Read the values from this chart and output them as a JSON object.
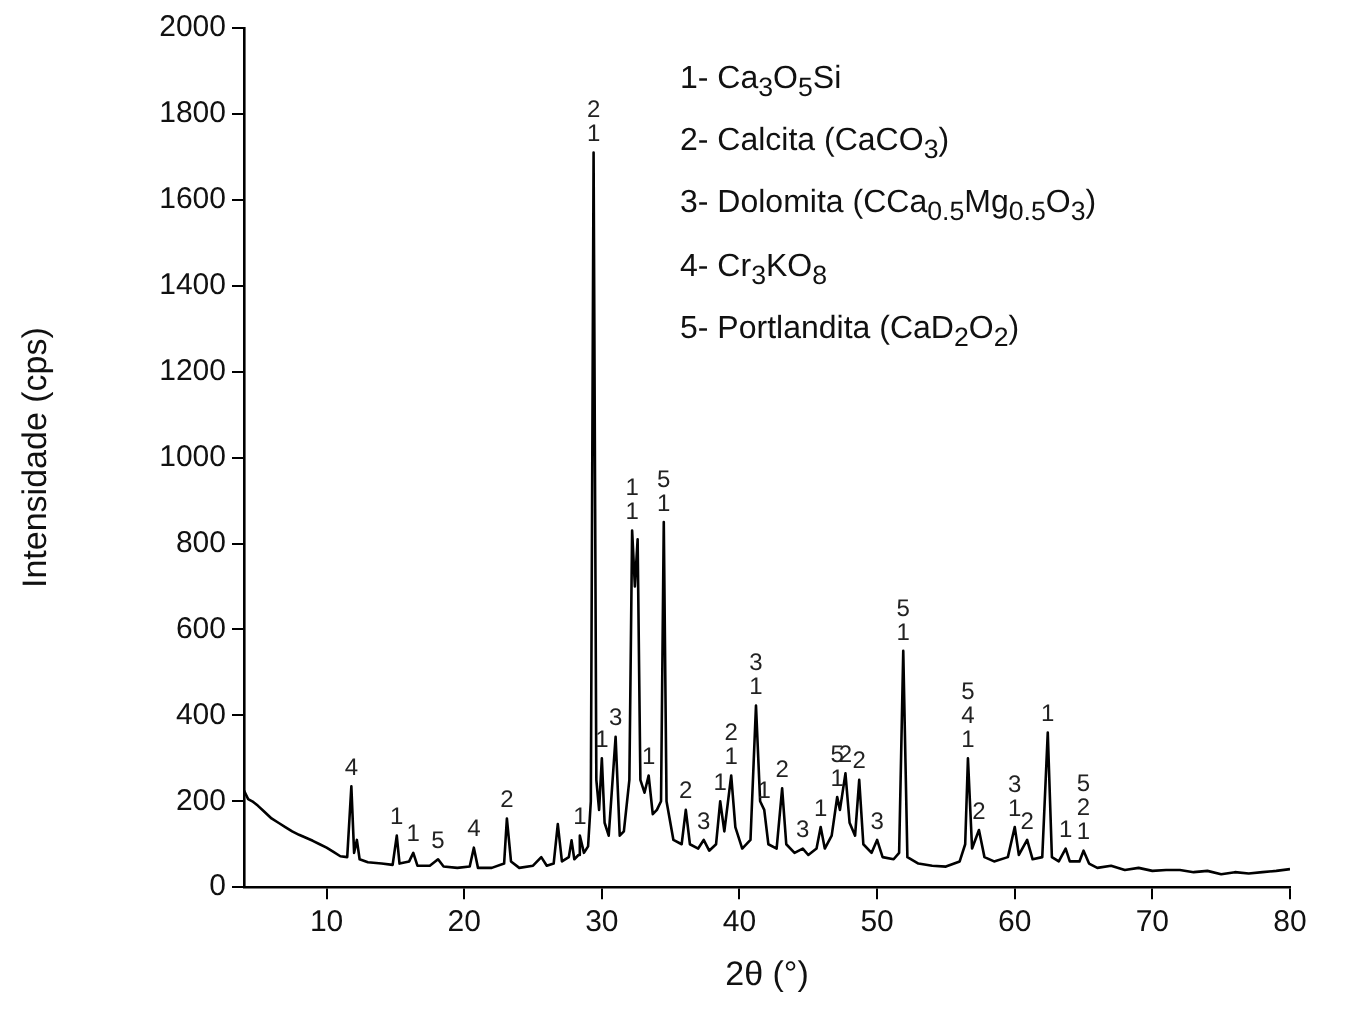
{
  "chart_data": {
    "type": "line",
    "xlabel": "2θ (°)",
    "ylabel": "Intensidade (cps)",
    "x": [
      4.0,
      4.3,
      4.6,
      5.0,
      5.5,
      6.0,
      6.5,
      7.0,
      7.5,
      8.0,
      8.5,
      9.0,
      9.5,
      10.0,
      10.5,
      11.0,
      11.5,
      11.8,
      12.0,
      12.2,
      12.4,
      13.0,
      14.0,
      14.8,
      15.1,
      15.3,
      16.0,
      16.3,
      16.6,
      17.5,
      18.1,
      18.5,
      19.5,
      20.4,
      20.7,
      21.0,
      22.0,
      22.9,
      23.1,
      23.4,
      24.0,
      25.0,
      25.6,
      26.0,
      26.5,
      26.8,
      27.1,
      27.6,
      27.8,
      28.0,
      28.3,
      28.4,
      28.7,
      29.0,
      29.2,
      29.4,
      29.6,
      29.8,
      30.0,
      30.2,
      30.5,
      31.0,
      31.3,
      31.6,
      32.0,
      32.2,
      32.4,
      32.6,
      32.8,
      33.1,
      33.4,
      33.7,
      34.0,
      34.3,
      34.5,
      34.7,
      35.2,
      35.8,
      36.1,
      36.4,
      37.0,
      37.4,
      37.8,
      38.3,
      38.6,
      38.9,
      39.4,
      39.7,
      40.2,
      40.8,
      41.2,
      41.5,
      41.8,
      42.1,
      42.7,
      43.1,
      43.4,
      44.0,
      44.6,
      45.0,
      45.6,
      45.9,
      46.2,
      46.7,
      47.1,
      47.3,
      47.7,
      48.0,
      48.4,
      48.7,
      49.0,
      49.6,
      50.0,
      50.4,
      51.2,
      51.6,
      51.9,
      52.2,
      53.0,
      54.0,
      55.0,
      56.0,
      56.4,
      56.6,
      56.9,
      57.4,
      57.8,
      58.5,
      59.5,
      60.0,
      60.3,
      60.9,
      61.3,
      62.0,
      62.4,
      62.7,
      63.2,
      63.7,
      64.0,
      64.7,
      65.0,
      65.4,
      66.0,
      67.0,
      68.0,
      69.0,
      70.0,
      71.0,
      72.0,
      73.0,
      74.0,
      75.0,
      76.0,
      77.0,
      78.0,
      79.0,
      80.0
    ],
    "series": [
      {
        "color": "#000000",
        "values": [
          225,
          205,
          200,
          190,
          175,
          160,
          150,
          140,
          130,
          122,
          115,
          108,
          100,
          92,
          82,
          72,
          70,
          235,
          80,
          110,
          65,
          58,
          55,
          52,
          120,
          55,
          60,
          80,
          50,
          50,
          65,
          48,
          45,
          48,
          92,
          45,
          45,
          55,
          160,
          60,
          45,
          50,
          70,
          50,
          55,
          147,
          60,
          70,
          109,
          65,
          75,
          120,
          80,
          95,
          200,
          1710,
          250,
          180,
          300,
          150,
          120,
          350,
          120,
          130,
          250,
          830,
          700,
          810,
          250,
          220,
          260,
          170,
          180,
          200,
          850,
          200,
          110,
          100,
          180,
          100,
          90,
          110,
          85,
          100,
          200,
          130,
          260,
          140,
          90,
          110,
          423,
          200,
          180,
          100,
          90,
          230,
          100,
          80,
          90,
          75,
          90,
          140,
          90,
          120,
          210,
          180,
          265,
          150,
          120,
          250,
          100,
          80,
          110,
          70,
          65,
          80,
          550,
          70,
          55,
          50,
          48,
          60,
          100,
          300,
          90,
          133,
          70,
          60,
          70,
          140,
          75,
          110,
          65,
          70,
          360,
          70,
          60,
          90,
          60,
          60,
          85,
          55,
          45,
          50,
          40,
          45,
          38,
          40,
          40,
          35,
          38,
          30,
          35,
          32,
          35,
          38,
          42
        ]
      }
    ],
    "xlim": [
      4,
      80
    ],
    "xticks": [
      10,
      20,
      30,
      40,
      50,
      60,
      70,
      80
    ],
    "ylim": [
      0,
      2000
    ],
    "yticks": [
      0,
      200,
      400,
      600,
      800,
      1000,
      1200,
      1400,
      1600,
      1800,
      2000
    ],
    "grid": false,
    "legend": false,
    "marker": "none",
    "line_style": "solid",
    "annotations": [
      "1- Ca$_{3}$O$_{5}$Si",
      "2- Calcita (CaCO$_{3}$)",
      "3- Dolomita (CCa$_{0.5}$Mg$_{0.5}$O$_{3}$)",
      "4- Cr$_{3}$KO$_{8}$",
      "5- Portlandita (CaD$_{2}$O$_{2}$)",
      {
        "text": "4",
        "x": 11.8,
        "y": 235
      },
      {
        "text": "1",
        "x": 15.1,
        "y": 120
      },
      {
        "text": "1",
        "x": 16.3,
        "y": 80
      },
      {
        "text": "5",
        "x": 18.1,
        "y": 65
      },
      {
        "text": "4",
        "x": 20.7,
        "y": 92
      },
      {
        "text": "2",
        "x": 23.1,
        "y": 160
      },
      {
        "text": "1",
        "x": 28.4,
        "y": 120
      },
      {
        "text": "1",
        "x": 29.4,
        "y": 1710
      },
      {
        "text": "2",
        "x": 29.4,
        "y": 1710
      },
      {
        "text": "1",
        "x": 30.0,
        "y": 300
      },
      {
        "text": "3",
        "x": 31.0,
        "y": 350
      },
      {
        "text": "1",
        "x": 32.2,
        "y": 830
      },
      {
        "text": "1",
        "x": 32.2,
        "y": 830
      },
      {
        "text": "1",
        "x": 33.4,
        "y": 260
      },
      {
        "text": "1",
        "x": 34.5,
        "y": 850
      },
      {
        "text": "5",
        "x": 34.5,
        "y": 850
      },
      {
        "text": "2",
        "x": 36.1,
        "y": 180
      },
      {
        "text": "3",
        "x": 37.4,
        "y": 110
      },
      {
        "text": "1",
        "x": 38.6,
        "y": 200
      },
      {
        "text": "1",
        "x": 39.4,
        "y": 260
      },
      {
        "text": "2",
        "x": 39.4,
        "y": 260
      },
      {
        "text": "1",
        "x": 41.2,
        "y": 423
      },
      {
        "text": "3",
        "x": 41.2,
        "y": 423
      },
      {
        "text": "1",
        "x": 41.8,
        "y": 180
      },
      {
        "text": "2",
        "x": 43.1,
        "y": 230
      },
      {
        "text": "3",
        "x": 44.6,
        "y": 90
      },
      {
        "text": "1",
        "x": 45.9,
        "y": 140
      },
      {
        "text": "1",
        "x": 47.1,
        "y": 210
      },
      {
        "text": "5",
        "x": 47.1,
        "y": 210
      },
      {
        "text": "2",
        "x": 47.7,
        "y": 265
      },
      {
        "text": "2",
        "x": 48.7,
        "y": 250
      },
      {
        "text": "3",
        "x": 50.0,
        "y": 110
      },
      {
        "text": "1",
        "x": 51.9,
        "y": 550
      },
      {
        "text": "5",
        "x": 51.9,
        "y": 550
      },
      {
        "text": "1",
        "x": 56.6,
        "y": 300
      },
      {
        "text": "4",
        "x": 56.6,
        "y": 300
      },
      {
        "text": "5",
        "x": 56.6,
        "y": 300
      },
      {
        "text": "2",
        "x": 57.4,
        "y": 133
      },
      {
        "text": "1",
        "x": 60.0,
        "y": 140
      },
      {
        "text": "3",
        "x": 60.0,
        "y": 140
      },
      {
        "text": "2",
        "x": 60.9,
        "y": 110
      },
      {
        "text": "1",
        "x": 62.4,
        "y": 360
      },
      {
        "text": "1",
        "x": 63.7,
        "y": 90
      },
      {
        "text": "1",
        "x": 65.0,
        "y": 85
      },
      {
        "text": "2",
        "x": 65.0,
        "y": 85
      },
      {
        "text": "5",
        "x": 65.0,
        "y": 85
      }
    ]
  }
}
